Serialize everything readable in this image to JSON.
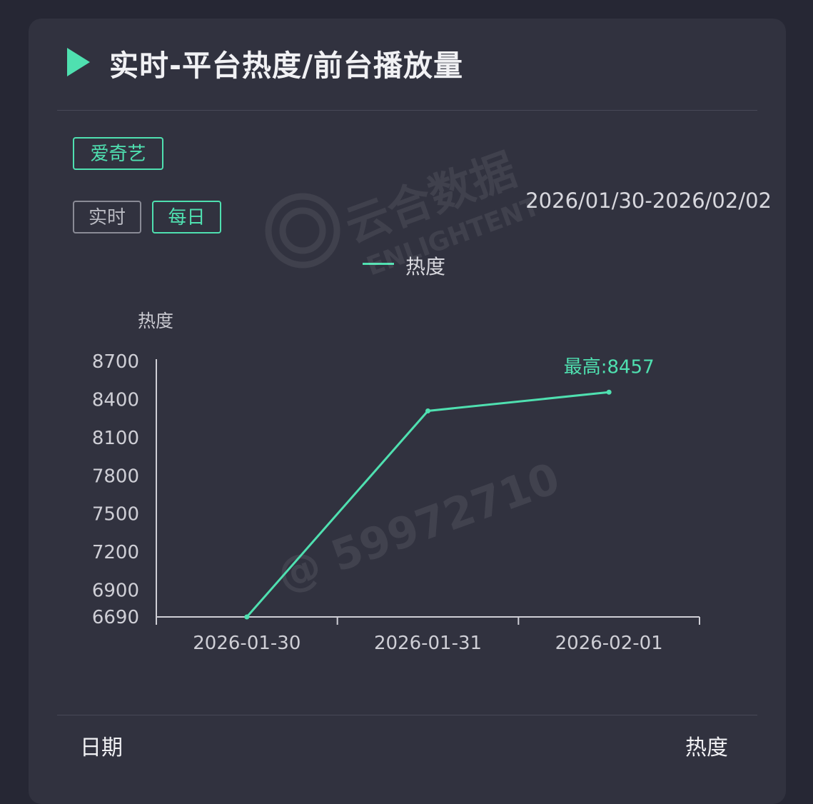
{
  "header": {
    "title": "实时-平台热度/前台播放量"
  },
  "platform_tabs": [
    {
      "label": "爱奇艺",
      "active": true
    }
  ],
  "mode_tabs": [
    {
      "label": "实时",
      "active": false
    },
    {
      "label": "每日",
      "active": true
    }
  ],
  "date_range": "2026/01/30-2026/02/02",
  "watermark": {
    "brand": "云合数据",
    "brand_en": "ENLIGHTENT",
    "user": "@ 59972710"
  },
  "chart_data": {
    "type": "line",
    "ylabel": "热度",
    "x": [
      "2026-01-30",
      "2026-01-31",
      "2026-02-01"
    ],
    "series": [
      {
        "name": "热度",
        "values": [
          6690,
          8310,
          8457
        ],
        "color": "#4fe0b0"
      }
    ],
    "yticks": [
      6690,
      6900,
      7200,
      7500,
      7800,
      8100,
      8400,
      8700
    ],
    "ylim": [
      6690,
      8700
    ],
    "annotation": {
      "label": "最高:8457",
      "value": 8457,
      "x": "2026-02-01"
    },
    "grid": false,
    "legend": "top-center"
  },
  "table_header": {
    "date": "日期",
    "heat": "热度"
  }
}
